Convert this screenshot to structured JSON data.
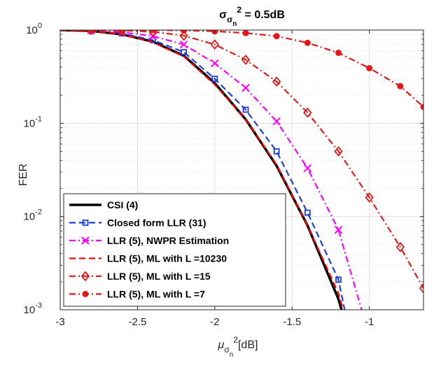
{
  "chart_data": {
    "type": "line",
    "title": {
      "sym": "σ",
      "sub": "σ",
      "subsub": "n",
      "sup": "2",
      "rest": " = 0.5dB"
    },
    "xlabel": {
      "sym": "μ",
      "sub": "σ",
      "subsub": "n",
      "sup": "2",
      "rest": "[dB]"
    },
    "ylabel": "FER",
    "xlim": [
      -3,
      -0.65
    ],
    "ylim_log10": [
      -3,
      0
    ],
    "y_scale": "log",
    "grid": true,
    "legend_position": "bottom-left",
    "xticks": [
      -3,
      -2.5,
      -2,
      -1.5,
      -1
    ],
    "xtick_labels": [
      "-3",
      "-2.5",
      "-2",
      "-1.5",
      "-1"
    ],
    "yticks": [
      {
        "base": "10",
        "exp": "-3",
        "log": -3
      },
      {
        "base": "10",
        "exp": "-2",
        "log": -2
      },
      {
        "base": "10",
        "exp": "-1",
        "log": -1
      },
      {
        "base": "10",
        "exp": "0",
        "log": 0
      }
    ],
    "series": [
      {
        "name": "CSI (4)",
        "color": "#000000",
        "dash": "solid",
        "marker": "none",
        "x": [
          -3,
          -2.8,
          -2.6,
          -2.4,
          -2.2,
          -2.0,
          -1.8,
          -1.6,
          -1.4,
          -1.2,
          -1.18
        ],
        "y": [
          1.0,
          0.98,
          0.9,
          0.75,
          0.53,
          0.27,
          0.11,
          0.035,
          0.008,
          0.0013,
          0.001
        ]
      },
      {
        "name": "Closed form LLR (31)",
        "color": "#1f3fd6",
        "dash": "dash",
        "marker": "square",
        "x": [
          -3,
          -2.8,
          -2.6,
          -2.4,
          -2.2,
          -2.0,
          -1.8,
          -1.6,
          -1.4,
          -1.2,
          -1.16
        ],
        "y": [
          1.0,
          0.98,
          0.92,
          0.78,
          0.58,
          0.3,
          0.14,
          0.05,
          0.011,
          0.0021,
          0.001
        ]
      },
      {
        "name": "LLR (5), NWPR Estimation",
        "color": "#ff00ff",
        "dash": "dashdot",
        "marker": "x",
        "x": [
          -3,
          -2.8,
          -2.6,
          -2.4,
          -2.2,
          -2.0,
          -1.8,
          -1.6,
          -1.4,
          -1.2,
          -1.05
        ],
        "y": [
          1.0,
          0.99,
          0.95,
          0.86,
          0.7,
          0.44,
          0.24,
          0.105,
          0.033,
          0.0072,
          0.001
        ]
      },
      {
        "name": "LLR (5), ML with L =10230",
        "color": "#ff0000",
        "dash": "dash",
        "marker": "none",
        "x": [
          -3,
          -2.8,
          -2.6,
          -2.4,
          -2.2,
          -2.0,
          -1.8,
          -1.6,
          -1.4,
          -1.2,
          -1.17
        ],
        "y": [
          1.0,
          0.98,
          0.9,
          0.74,
          0.52,
          0.26,
          0.11,
          0.036,
          0.008,
          0.0015,
          0.001
        ]
      },
      {
        "name": "LLR (5), ML with L =15",
        "color": "#dd1c1c",
        "dash": "dashdot",
        "marker": "diamond",
        "x": [
          -3,
          -2.8,
          -2.6,
          -2.4,
          -2.2,
          -2.0,
          -1.8,
          -1.6,
          -1.4,
          -1.2,
          -1.0,
          -0.8,
          -0.65
        ],
        "y": [
          1.0,
          1.0,
          0.99,
          0.96,
          0.87,
          0.7,
          0.48,
          0.28,
          0.13,
          0.05,
          0.016,
          0.0047,
          0.0017
        ]
      },
      {
        "name": "LLR (5), ML with L =7",
        "color": "#e61717",
        "dash": "dashdot",
        "marker": "circle",
        "x": [
          -3,
          -2.8,
          -2.6,
          -2.4,
          -2.2,
          -2.0,
          -1.8,
          -1.6,
          -1.4,
          -1.2,
          -1.0,
          -0.8,
          -0.65
        ],
        "y": [
          1.0,
          1.0,
          1.0,
          1.0,
          0.99,
          0.97,
          0.93,
          0.86,
          0.73,
          0.57,
          0.39,
          0.25,
          0.15
        ]
      }
    ]
  }
}
